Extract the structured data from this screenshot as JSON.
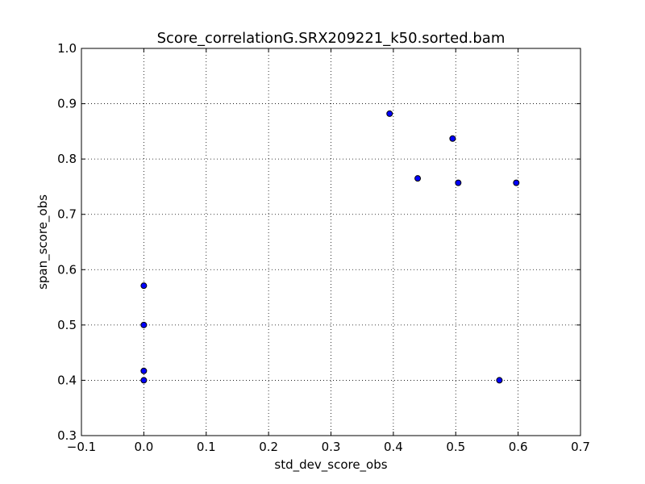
{
  "chart_data": {
    "type": "scatter",
    "title": "Score_correlationG.SRX209221_k50.sorted.bam",
    "xlabel": "std_dev_score_obs",
    "ylabel": "span_score_obs",
    "xlim": [
      -0.1,
      0.7
    ],
    "ylim": [
      0.3,
      1.0
    ],
    "xticks": [
      -0.1,
      0.0,
      0.1,
      0.2,
      0.3,
      0.4,
      0.5,
      0.6,
      0.7
    ],
    "xtick_labels": [
      "−0.1",
      "0.0",
      "0.1",
      "0.2",
      "0.3",
      "0.4",
      "0.5",
      "0.6",
      "0.7"
    ],
    "yticks": [
      0.3,
      0.4,
      0.5,
      0.6,
      0.7,
      0.8,
      0.9,
      1.0
    ],
    "ytick_labels": [
      "0.3",
      "0.4",
      "0.5",
      "0.6",
      "0.7",
      "0.8",
      "0.9",
      "1.0"
    ],
    "grid": true,
    "marker_color": "#0000ff",
    "points": [
      {
        "x": 0.0,
        "y": 0.571
      },
      {
        "x": 0.0,
        "y": 0.5
      },
      {
        "x": 0.0,
        "y": 0.417
      },
      {
        "x": 0.0,
        "y": 0.4
      },
      {
        "x": 0.394,
        "y": 0.882
      },
      {
        "x": 0.439,
        "y": 0.765
      },
      {
        "x": 0.495,
        "y": 0.837
      },
      {
        "x": 0.504,
        "y": 0.757
      },
      {
        "x": 0.597,
        "y": 0.757
      },
      {
        "x": 0.57,
        "y": 0.4
      }
    ]
  }
}
